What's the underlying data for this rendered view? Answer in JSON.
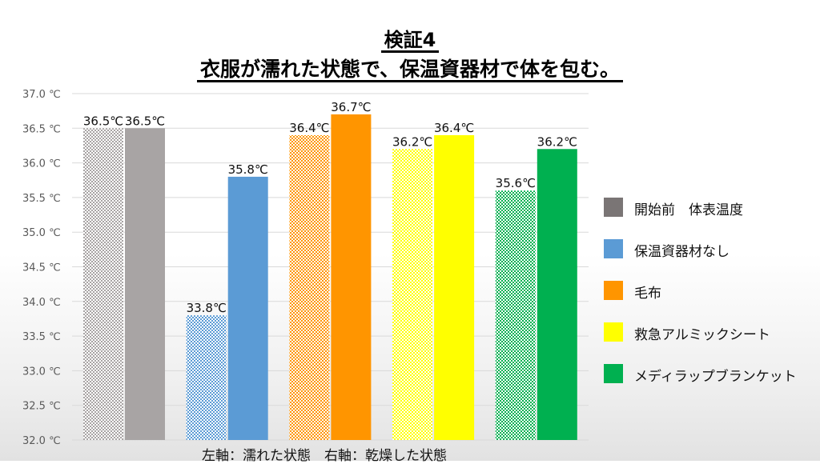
{
  "title": {
    "line1": "検証4",
    "line2": "衣服が濡れた状態で、保温資器材で体を包む。"
  },
  "caption": "左軸：濡れた状態　右軸：乾燥した状態",
  "chart_data": {
    "type": "bar",
    "title": "検証4 衣服が濡れた状態で、保温資器材で体を包む。",
    "ylim": [
      32.0,
      37.0
    ],
    "ytick_step": 0.5,
    "ytick_labels": [
      "32.0 ℃",
      "32.5 ℃",
      "33.0 ℃",
      "33.5 ℃",
      "34.0 ℃",
      "34.5 ℃",
      "35.0 ℃",
      "35.5 ℃",
      "36.0 ℃",
      "36.5 ℃",
      "37.0 ℃"
    ],
    "grid": true,
    "legend_position": "right",
    "groups": [
      {
        "series": "開始前　体表温度",
        "color": "#a8a4a4",
        "wet": 36.5,
        "dry": 36.5,
        "wet_label": "36.5℃",
        "dry_label": "36.5℃"
      },
      {
        "series": "保温資器材なし",
        "color": "#5b9bd5",
        "wet": 33.8,
        "dry": 35.8,
        "wet_label": "33.8℃",
        "dry_label": "35.8℃"
      },
      {
        "series": "毛布",
        "color": "#ff9500",
        "wet": 36.4,
        "dry": 36.7,
        "wet_label": "36.4℃",
        "dry_label": "36.7℃"
      },
      {
        "series": "救急アルミックシート",
        "color": "#ffff00",
        "wet": 36.2,
        "dry": 36.4,
        "wet_label": "36.2℃",
        "dry_label": "36.4℃"
      },
      {
        "series": "メディラップブランケット",
        "color": "#00b050",
        "wet": 35.6,
        "dry": 36.2,
        "wet_label": "35.6℃",
        "dry_label": "36.2℃"
      }
    ]
  },
  "legend": [
    {
      "label": "開始前　体表温度",
      "color": "#7a7575"
    },
    {
      "label": "保温資器材なし",
      "color": "#5b9bd5"
    },
    {
      "label": "毛布",
      "color": "#ff9500"
    },
    {
      "label": "救急アルミックシート",
      "color": "#ffff00"
    },
    {
      "label": "メディラップブランケット",
      "color": "#00b050"
    }
  ]
}
